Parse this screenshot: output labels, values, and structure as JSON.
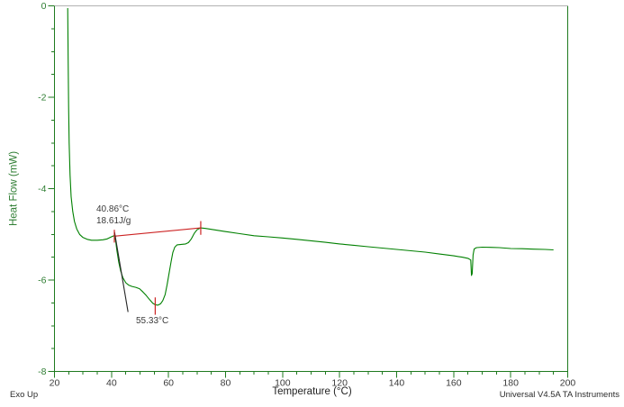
{
  "chart_data": {
    "type": "line",
    "title": "",
    "xlabel": "Temperature (°C)",
    "ylabel": "Heat Flow (mW)",
    "xlim": [
      20,
      200
    ],
    "ylim": [
      -8,
      0
    ],
    "grid": false,
    "legend": "none",
    "x_tick_values": [
      20,
      40,
      60,
      80,
      100,
      120,
      140,
      160,
      180,
      200
    ],
    "x_tick_labels": [
      "20",
      "40",
      "60",
      "80",
      "100",
      "120",
      "140",
      "160",
      "180",
      "200"
    ],
    "x_minor_step": 5,
    "y_tick_values": [
      0,
      -2,
      -4,
      -6,
      -8
    ],
    "y_tick_labels": [
      "0",
      "-2",
      "-4",
      "-6",
      "-8"
    ],
    "y_minor_step": 0.5,
    "series": [
      {
        "name": "dsc-heat-flow-curve",
        "color": "#008000",
        "points": [
          [
            24.65,
            -0.05
          ],
          [
            24.72,
            -0.5
          ],
          [
            24.8,
            -1.2
          ],
          [
            24.95,
            -2.2
          ],
          [
            25.15,
            -3.0
          ],
          [
            25.45,
            -3.7
          ],
          [
            25.85,
            -4.18
          ],
          [
            26.4,
            -4.5
          ],
          [
            27.0,
            -4.72
          ],
          [
            27.8,
            -4.88
          ],
          [
            28.8,
            -5.0
          ],
          [
            30.0,
            -5.07
          ],
          [
            31.5,
            -5.11
          ],
          [
            33.0,
            -5.13
          ],
          [
            35.0,
            -5.13
          ],
          [
            37.0,
            -5.12
          ],
          [
            38.5,
            -5.1
          ],
          [
            39.8,
            -5.06
          ],
          [
            40.86,
            -5.03
          ],
          [
            41.4,
            -5.12
          ],
          [
            41.9,
            -5.35
          ],
          [
            42.5,
            -5.6
          ],
          [
            43.2,
            -5.8
          ],
          [
            44.0,
            -5.95
          ],
          [
            45.0,
            -6.06
          ],
          [
            46.0,
            -6.11
          ],
          [
            47.2,
            -6.14
          ],
          [
            48.5,
            -6.16
          ],
          [
            49.8,
            -6.19
          ],
          [
            51.0,
            -6.26
          ],
          [
            52.2,
            -6.34
          ],
          [
            53.5,
            -6.44
          ],
          [
            54.5,
            -6.51
          ],
          [
            55.33,
            -6.54
          ],
          [
            56.3,
            -6.55
          ],
          [
            57.2,
            -6.52
          ],
          [
            58.0,
            -6.45
          ],
          [
            58.8,
            -6.32
          ],
          [
            59.5,
            -6.1
          ],
          [
            60.2,
            -5.85
          ],
          [
            60.9,
            -5.6
          ],
          [
            61.5,
            -5.4
          ],
          [
            62.2,
            -5.28
          ],
          [
            63.0,
            -5.23
          ],
          [
            64.5,
            -5.22
          ],
          [
            66.0,
            -5.21
          ],
          [
            67.0,
            -5.18
          ],
          [
            68.0,
            -5.1
          ],
          [
            69.0,
            -4.98
          ],
          [
            70.0,
            -4.9
          ],
          [
            71.2,
            -4.86
          ],
          [
            73.0,
            -4.87
          ],
          [
            76.0,
            -4.9
          ],
          [
            80.0,
            -4.94
          ],
          [
            85.0,
            -4.985
          ],
          [
            90.0,
            -5.03
          ],
          [
            95.0,
            -5.055
          ],
          [
            100.0,
            -5.08
          ],
          [
            105.0,
            -5.11
          ],
          [
            110.0,
            -5.14
          ],
          [
            115.0,
            -5.175
          ],
          [
            120.0,
            -5.21
          ],
          [
            125.0,
            -5.24
          ],
          [
            130.0,
            -5.27
          ],
          [
            135.0,
            -5.3
          ],
          [
            140.0,
            -5.33
          ],
          [
            145.0,
            -5.36
          ],
          [
            150.0,
            -5.39
          ],
          [
            155.0,
            -5.43
          ],
          [
            160.0,
            -5.47
          ],
          [
            163.0,
            -5.5
          ],
          [
            165.0,
            -5.525
          ],
          [
            166.0,
            -5.56
          ],
          [
            166.25,
            -5.9
          ],
          [
            166.5,
            -5.86
          ],
          [
            166.8,
            -5.45
          ],
          [
            167.2,
            -5.32
          ],
          [
            168.0,
            -5.29
          ],
          [
            170.0,
            -5.28
          ],
          [
            173.0,
            -5.285
          ],
          [
            176.0,
            -5.29
          ],
          [
            180.0,
            -5.31
          ],
          [
            184.0,
            -5.315
          ],
          [
            188.0,
            -5.325
          ],
          [
            192.0,
            -5.33
          ],
          [
            195.0,
            -5.34
          ]
        ]
      },
      {
        "name": "integration-baseline",
        "color": "#cc2222",
        "points": [
          [
            41.0,
            -5.04
          ],
          [
            71.3,
            -4.86
          ]
        ]
      },
      {
        "name": "onset-tangent-line",
        "color": "#262626",
        "points": [
          [
            41.05,
            -4.95
          ],
          [
            45.8,
            -6.7
          ]
        ]
      }
    ],
    "markers": [
      {
        "name": "onset-marker",
        "x": 41.0,
        "y": -5.04,
        "half": 0.14,
        "color": "#cc2222"
      },
      {
        "name": "endset-marker",
        "x": 71.3,
        "y": -4.86,
        "half": 0.15,
        "color": "#cc2222"
      },
      {
        "name": "peak-marker",
        "x": 55.33,
        "y": -6.57,
        "half": 0.19,
        "color": "#cc2222"
      }
    ],
    "annotations": {
      "onset_temp": "40.86°C",
      "onset_enthalpy": "18.61J/g",
      "peak_temp": "55.33°C"
    }
  },
  "footer": {
    "exo_label": "Exo Up",
    "xaxis_title": "Temperature (°C)",
    "credit": "Universal V4.5A TA Instruments"
  },
  "colors": {
    "curve": "#008000",
    "axis_frame": "#1f7a1f",
    "top_frame": "#b3b3b3",
    "y_text": "#2e7d32",
    "x_text": "#3a3a3a",
    "annotation_text": "#3a3a3a"
  }
}
